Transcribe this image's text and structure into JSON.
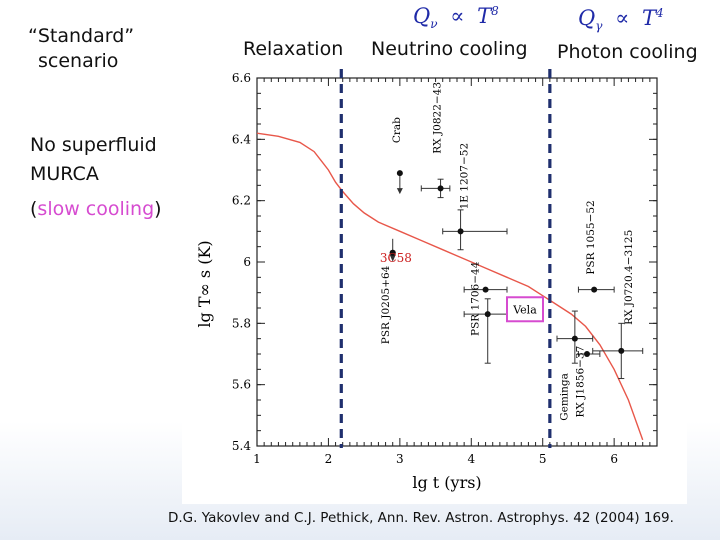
{
  "labels": {
    "standard_line1": "“Standard”",
    "standard_line2": "scenario",
    "relaxation": "Relaxation",
    "neutrino": "Neutrino cooling",
    "photon": "Photon cooling",
    "no_superfluid": "No superfluid",
    "murca": "MURCA",
    "slow_open": "(",
    "slow_text": "slow cooling",
    "slow_close": ")",
    "citation": "D.G. Yakovlev and C.J. Pethick, Ann. Rev. Astron. Astrophys. 42 (2004) 169.",
    "formula1": {
      "q": "Q",
      "sub": "ν",
      "prop": "∝",
      "t": "T",
      "sup": "8"
    },
    "formula2": {
      "q": "Q",
      "sub": "γ",
      "prop": "∝",
      "t": "T",
      "sup": "4"
    }
  },
  "colors": {
    "curve": "#e8574a",
    "highlight": "#d64bd0",
    "divider": "#1f2f6e",
    "formula": "#1f2aa8"
  },
  "chart_data": {
    "type": "scatter",
    "xlabel": "lg  t    (yrs)",
    "ylabel": "lg  T∞ s  (K)",
    "xlim": [
      1,
      6.6
    ],
    "ylim": [
      5.4,
      6.6
    ],
    "x_ticks": [
      "1",
      "2",
      "3",
      "4",
      "5",
      "6"
    ],
    "y_ticks": [
      "5.4",
      "5.6",
      "5.8",
      "6",
      "6.2",
      "6.4",
      "6.6"
    ],
    "curve": {
      "x": [
        1.0,
        1.3,
        1.6,
        1.8,
        1.9,
        2.0,
        2.1,
        2.2,
        2.35,
        2.5,
        2.7,
        3.0,
        3.3,
        3.6,
        3.9,
        4.2,
        4.5,
        4.8,
        5.0,
        5.2,
        5.4,
        5.6,
        5.8,
        6.0,
        6.2,
        6.4
      ],
      "y": [
        6.42,
        6.41,
        6.39,
        6.36,
        6.33,
        6.3,
        6.26,
        6.23,
        6.19,
        6.16,
        6.13,
        6.1,
        6.07,
        6.04,
        6.01,
        5.98,
        5.95,
        5.92,
        5.89,
        5.86,
        5.83,
        5.79,
        5.73,
        5.65,
        5.55,
        5.42
      ]
    },
    "dividers_x": [
      2.18,
      5.1
    ],
    "points": [
      {
        "name": "Crab",
        "x": 3.0,
        "y": 6.29,
        "arrow": "up"
      },
      {
        "name": "RX J0822-43",
        "x": 3.57,
        "y": 6.24,
        "xerr": [
          3.3,
          3.7
        ],
        "yerr": [
          6.21,
          6.27
        ]
      },
      {
        "name": "1E 1207-52",
        "x": 3.85,
        "y": 6.1,
        "xerr": [
          3.6,
          4.5
        ],
        "yerr": [
          6.04,
          6.17
        ]
      },
      {
        "name": "3C58",
        "x": 2.9,
        "y": 6.03,
        "arrow": "down"
      },
      {
        "name": "PSR J0205+64",
        "x": 2.9,
        "y": 6.03
      },
      {
        "name": "PSR 1706-44",
        "x": 4.2,
        "y": 5.91,
        "xerr": [
          3.9,
          4.5
        ]
      },
      {
        "name": "Vela",
        "x": 4.23,
        "y": 5.83,
        "xerr": [
          3.9,
          4.5
        ],
        "yerr": [
          5.67,
          5.88
        ]
      },
      {
        "name": "PSR 1055-52",
        "x": 5.72,
        "y": 5.91,
        "xerr": [
          5.5,
          6.0
        ]
      },
      {
        "name": "Geminga",
        "x": 5.45,
        "y": 5.75,
        "xerr": [
          5.2,
          5.7
        ],
        "yerr": [
          5.67,
          5.84
        ]
      },
      {
        "name": "RX J1856-37",
        "x": 5.62,
        "y": 5.7,
        "xerr": [
          5.5,
          5.8
        ]
      },
      {
        "name": "RX J0720.4-3125",
        "x": 6.1,
        "y": 5.71,
        "xerr": [
          5.7,
          6.4
        ],
        "yerr": [
          5.62,
          5.8
        ]
      }
    ],
    "annotations": [
      {
        "text": "Crab",
        "x": 3.0,
        "y": 6.43,
        "rotate": true
      },
      {
        "text": "RX J0822−43",
        "x": 3.57,
        "y": 6.47,
        "rotate": true
      },
      {
        "text": "1E 1207−52",
        "x": 3.95,
        "y": 6.28,
        "rotate": true
      },
      {
        "text": "PSR 1055−52",
        "x": 5.72,
        "y": 6.08,
        "rotate": true
      },
      {
        "text": "RX J0720.4−3125",
        "x": 6.25,
        "y": 5.95,
        "rotate": true
      },
      {
        "text": "PSR J0205+64",
        "x": 2.85,
        "y": 5.86,
        "rotate": true
      },
      {
        "text": "PSR 1706−44",
        "x": 4.1,
        "y": 5.88,
        "rotate": true
      },
      {
        "text": "Geminga",
        "x": 5.35,
        "y": 5.56,
        "rotate": true
      },
      {
        "text": "RX J1856−37",
        "x": 5.57,
        "y": 5.61,
        "rotate": true
      }
    ],
    "labels_overlay": {
      "c3c58": "3C58",
      "vela": "Vela"
    }
  }
}
